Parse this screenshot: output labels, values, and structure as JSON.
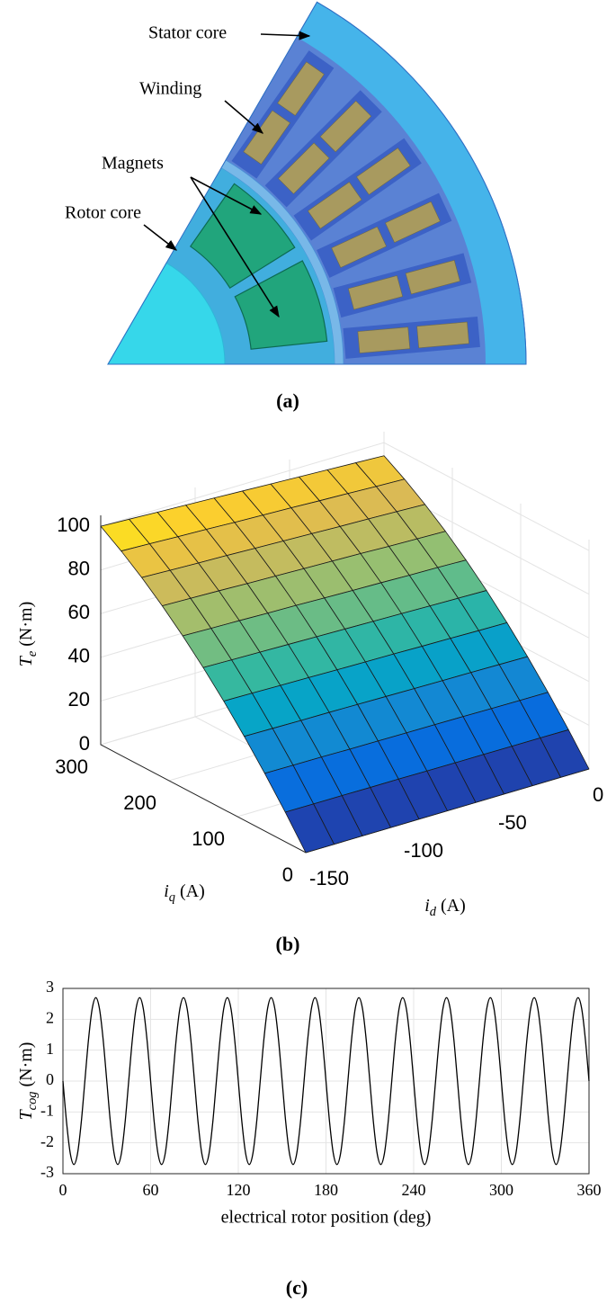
{
  "panel_a": {
    "labels": [
      "Stator core",
      "Winding",
      "Magnets",
      "Rotor core"
    ],
    "caption": "(a)"
  },
  "chart_data": [
    {
      "type": "surface",
      "caption": "(b)",
      "xlabel": "i",
      "xlabel_sub": "d",
      "xlabel_unit": "(A)",
      "ylabel": "i",
      "ylabel_sub": "q",
      "ylabel_unit": "(A)",
      "zlabel": "T",
      "zlabel_sub": "e",
      "zlabel_unit": "(N·m)",
      "x": [
        -150,
        -135,
        -120,
        -105,
        -90,
        -75,
        -60,
        -45,
        -30,
        -15,
        0
      ],
      "y": [
        0,
        30,
        60,
        90,
        120,
        150,
        180,
        210,
        240,
        270,
        300
      ],
      "z": [
        [
          0,
          0,
          0,
          0,
          0,
          0,
          0,
          0,
          0,
          0,
          0
        ],
        [
          13.6,
          13.5,
          13.5,
          13.4,
          13.4,
          13.3,
          13.2,
          13.2,
          13.1,
          13.1,
          13.0
        ],
        [
          26.4,
          26.3,
          26.2,
          26.0,
          25.9,
          25.8,
          25.7,
          25.6,
          25.4,
          25.3,
          25.2
        ],
        [
          38.4,
          38.2,
          38.0,
          37.9,
          37.7,
          37.5,
          37.3,
          37.1,
          37.0,
          36.8,
          36.6
        ],
        [
          49.6,
          49.4,
          49.1,
          48.9,
          48.6,
          48.4,
          48.2,
          47.9,
          47.7,
          47.4,
          47.2
        ],
        [
          60.0,
          59.7,
          59.4,
          59.1,
          58.8,
          58.5,
          58.2,
          57.9,
          57.6,
          57.3,
          57.0
        ],
        [
          69.6,
          69.2,
          68.9,
          68.5,
          68.2,
          67.8,
          67.4,
          67.1,
          66.7,
          66.4,
          66.0
        ],
        [
          78.4,
          78.0,
          77.6,
          77.1,
          76.7,
          76.3,
          75.9,
          75.5,
          75.0,
          74.6,
          74.2
        ],
        [
          86.4,
          85.9,
          85.4,
          85.0,
          84.5,
          84.0,
          83.5,
          83.0,
          82.6,
          82.1,
          81.6
        ],
        [
          93.6,
          93.1,
          92.5,
          92.0,
          91.4,
          90.9,
          90.4,
          89.8,
          89.3,
          88.7,
          88.2
        ],
        [
          100.0,
          99.4,
          98.8,
          98.2,
          97.6,
          97.0,
          96.4,
          95.8,
          95.2,
          94.6,
          94.0
        ]
      ],
      "xlim": [
        -150,
        0
      ],
      "xticks": [
        -150,
        -100,
        -50,
        0
      ],
      "ylim": [
        0,
        300
      ],
      "yticks": [
        0,
        100,
        200,
        300
      ],
      "zlim": [
        0,
        105
      ],
      "zticks": [
        0,
        20,
        40,
        60,
        80,
        100
      ],
      "colormap": "parula",
      "grid": true
    },
    {
      "type": "line",
      "caption": "(c)",
      "xlabel": "electrical rotor position (deg)",
      "ylabel": "T",
      "ylabel_sub": "cog",
      "ylabel_unit": "(N·m)",
      "color": "#000000",
      "x": [
        0,
        2.5,
        5,
        7.5,
        10,
        12.5,
        15,
        17.5,
        20,
        22.5,
        25,
        27.5,
        30,
        32.5,
        35,
        37.5,
        40,
        42.5,
        45,
        47.5,
        50,
        52.5,
        55,
        57.5,
        60,
        62.5,
        65,
        67.5,
        70,
        72.5,
        75,
        77.5,
        80,
        82.5,
        85,
        87.5,
        90,
        92.5,
        95,
        97.5,
        100,
        102.5,
        105,
        107.5,
        110,
        112.5,
        115,
        117.5,
        120,
        122.5,
        125,
        127.5,
        130,
        132.5,
        135,
        137.5,
        140,
        142.5,
        145,
        147.5,
        150,
        152.5,
        155,
        157.5,
        160,
        162.5,
        165,
        167.5,
        170,
        172.5,
        175,
        177.5,
        180,
        182.5,
        185,
        187.5,
        190,
        192.5,
        195,
        197.5,
        200,
        202.5,
        205,
        207.5,
        210,
        212.5,
        215,
        217.5,
        220,
        222.5,
        225,
        227.5,
        230,
        232.5,
        235,
        237.5,
        240,
        242.5,
        245,
        247.5,
        250,
        252.5,
        255,
        257.5,
        260,
        262.5,
        265,
        267.5,
        270,
        272.5,
        275,
        277.5,
        280,
        282.5,
        285,
        287.5,
        290,
        292.5,
        295,
        297.5,
        300,
        302.5,
        305,
        307.5,
        310,
        312.5,
        315,
        317.5,
        320,
        322.5,
        325,
        327.5,
        330,
        332.5,
        335,
        337.5,
        340,
        342.5,
        345,
        347.5,
        350,
        352.5,
        355,
        357.5,
        360
      ],
      "values": [
        0,
        -1.35,
        -2.34,
        -2.7,
        -2.34,
        -1.35,
        0,
        1.35,
        2.34,
        2.7,
        2.34,
        1.35,
        0,
        -1.35,
        -2.34,
        -2.7,
        -2.34,
        -1.35,
        0,
        1.35,
        2.34,
        2.7,
        2.34,
        1.35,
        0,
        -1.35,
        -2.34,
        -2.7,
        -2.34,
        -1.35,
        0,
        1.35,
        2.34,
        2.7,
        2.34,
        1.35,
        0,
        -1.35,
        -2.34,
        -2.7,
        -2.34,
        -1.35,
        0,
        1.35,
        2.34,
        2.7,
        2.34,
        1.35,
        0,
        -1.35,
        -2.34,
        -2.7,
        -2.34,
        -1.35,
        0,
        1.35,
        2.34,
        2.7,
        2.34,
        1.35,
        0,
        -1.35,
        -2.34,
        -2.7,
        -2.34,
        -1.35,
        0,
        1.35,
        2.34,
        2.7,
        2.34,
        1.35,
        0,
        -1.35,
        -2.34,
        -2.7,
        -2.34,
        -1.35,
        0,
        1.35,
        2.34,
        2.7,
        2.34,
        1.35,
        0,
        -1.35,
        -2.34,
        -2.7,
        -2.34,
        -1.35,
        0,
        1.35,
        2.34,
        2.7,
        2.34,
        1.35,
        0,
        -1.35,
        -2.34,
        -2.7,
        -2.34,
        -1.35,
        0,
        1.35,
        2.34,
        2.7,
        2.34,
        1.35,
        0,
        -1.35,
        -2.34,
        -2.7,
        -2.34,
        -1.35,
        0,
        1.35,
        2.34,
        2.7,
        2.34,
        1.35,
        0,
        -1.35,
        -2.34,
        -2.7,
        -2.34,
        -1.35,
        0,
        1.35,
        2.34,
        2.7,
        2.34,
        1.35,
        0,
        -1.35,
        -2.34,
        -2.7,
        -2.34,
        -1.35,
        0,
        1.35,
        2.34,
        2.7,
        2.34,
        1.35,
        0
      ],
      "xlim": [
        0,
        360
      ],
      "xticks": [
        0,
        60,
        120,
        180,
        240,
        300,
        360
      ],
      "ylim": [
        -3,
        3
      ],
      "yticks": [
        -3,
        -2,
        -1,
        0,
        1,
        2,
        3
      ],
      "grid": true
    }
  ]
}
